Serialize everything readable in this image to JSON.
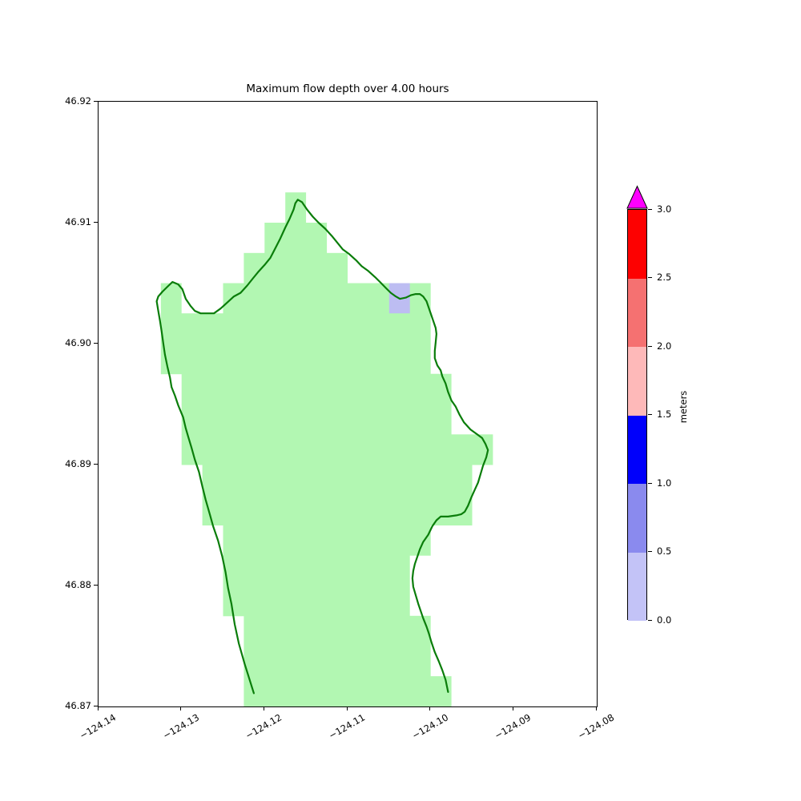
{
  "figure": {
    "title": "Maximum flow depth over 4.00 hours",
    "background_color": "#ffffff"
  },
  "chart_data": {
    "type": "heatmap",
    "title": "Maximum flow depth over 4.00 hours",
    "xlabel": "",
    "ylabel": "",
    "xlim": [
      -124.14,
      -124.08
    ],
    "ylim": [
      46.87,
      46.92
    ],
    "grid": false,
    "xticks": [
      -124.14,
      -124.13,
      -124.12,
      -124.11,
      -124.1,
      -124.09,
      -124.08
    ],
    "xtick_labels": [
      "−124.14",
      "−124.13",
      "−124.12",
      "−124.11",
      "−124.10",
      "−124.09",
      "−124.08"
    ],
    "yticks": [
      46.92,
      46.91,
      46.9,
      46.89,
      46.88,
      46.87
    ],
    "ytick_labels": [
      "46.92",
      "46.91",
      "46.90",
      "46.89",
      "46.88",
      "46.87"
    ],
    "domain_fill_color": "#b2f7b2",
    "coastline_color": "#0a7d0a",
    "domain_rows": [
      {
        "lat": [
          46.9125,
          46.91
        ],
        "lon_segments": [
          [
            -124.1175,
            -124.115
          ]
        ]
      },
      {
        "lat": [
          46.91,
          46.9075
        ],
        "lon_segments": [
          [
            -124.12,
            -124.1125
          ]
        ]
      },
      {
        "lat": [
          46.9075,
          46.905
        ],
        "lon_segments": [
          [
            -124.1225,
            -124.11
          ]
        ]
      },
      {
        "lat": [
          46.905,
          46.9025
        ],
        "lon_segments": [
          [
            -124.1325,
            -124.13
          ],
          [
            -124.125,
            -124.1
          ]
        ]
      },
      {
        "lat": [
          46.9025,
          46.9
        ],
        "lon_segments": [
          [
            -124.1325,
            -124.1
          ]
        ]
      },
      {
        "lat": [
          46.9,
          46.8975
        ],
        "lon_segments": [
          [
            -124.1325,
            -124.1
          ]
        ]
      },
      {
        "lat": [
          46.8975,
          46.895
        ],
        "lon_segments": [
          [
            -124.13,
            -124.0975
          ]
        ]
      },
      {
        "lat": [
          46.895,
          46.8925
        ],
        "lon_segments": [
          [
            -124.13,
            -124.0975
          ]
        ]
      },
      {
        "lat": [
          46.8925,
          46.89
        ],
        "lon_segments": [
          [
            -124.13,
            -124.0925
          ]
        ]
      },
      {
        "lat": [
          46.89,
          46.8875
        ],
        "lon_segments": [
          [
            -124.1275,
            -124.095
          ]
        ]
      },
      {
        "lat": [
          46.8875,
          46.885
        ],
        "lon_segments": [
          [
            -124.1275,
            -124.095
          ]
        ]
      },
      {
        "lat": [
          46.885,
          46.8825
        ],
        "lon_segments": [
          [
            -124.125,
            -124.1
          ]
        ]
      },
      {
        "lat": [
          46.8825,
          46.88
        ],
        "lon_segments": [
          [
            -124.125,
            -124.1025
          ]
        ]
      },
      {
        "lat": [
          46.88,
          46.8775
        ],
        "lon_segments": [
          [
            -124.125,
            -124.1025
          ]
        ]
      },
      {
        "lat": [
          46.8775,
          46.875
        ],
        "lon_segments": [
          [
            -124.1225,
            -124.1
          ]
        ]
      },
      {
        "lat": [
          46.875,
          46.8725
        ],
        "lon_segments": [
          [
            -124.1225,
            -124.1
          ]
        ]
      },
      {
        "lat": [
          46.8725,
          46.87
        ],
        "lon_segments": [
          [
            -124.1225,
            -124.0975
          ]
        ]
      }
    ],
    "flooded_cells": [
      {
        "lon": [
          -124.105,
          -124.1025
        ],
        "lat": [
          46.9025,
          46.905
        ],
        "depth_bin_m": [
          0.0,
          0.5
        ],
        "color": "#bdbdf2"
      }
    ],
    "coastline": [
      [
        -124.1213,
        46.8711
      ],
      [
        -124.1218,
        46.8722
      ],
      [
        -124.1224,
        46.8735
      ],
      [
        -124.1231,
        46.8752
      ],
      [
        -124.1236,
        46.8768
      ],
      [
        -124.124,
        46.8785
      ],
      [
        -124.1244,
        46.8798
      ],
      [
        -124.1247,
        46.8811
      ],
      [
        -124.1251,
        46.8824
      ],
      [
        -124.1256,
        46.8837
      ],
      [
        -124.1262,
        46.8849
      ],
      [
        -124.1266,
        46.8859
      ],
      [
        -124.1271,
        46.8871
      ],
      [
        -124.1275,
        46.8882
      ],
      [
        -124.1279,
        46.8894
      ],
      [
        -124.1284,
        46.8904
      ],
      [
        -124.1288,
        46.8914
      ],
      [
        -124.1292,
        46.8923
      ],
      [
        -124.1295,
        46.893
      ],
      [
        -124.1298,
        46.8939
      ],
      [
        -124.1304,
        46.8949
      ],
      [
        -124.1308,
        46.8957
      ],
      [
        -124.1312,
        46.8964
      ],
      [
        -124.1314,
        46.8972
      ],
      [
        -124.1317,
        46.8981
      ],
      [
        -124.132,
        46.8991
      ],
      [
        -124.1322,
        46.9
      ],
      [
        -124.1324,
        46.901
      ],
      [
        -124.1326,
        46.9019
      ],
      [
        -124.1328,
        46.9027
      ],
      [
        -124.133,
        46.9035
      ],
      [
        -124.1328,
        46.9039
      ],
      [
        -124.1323,
        46.9043
      ],
      [
        -124.1317,
        46.9047
      ],
      [
        -124.1311,
        46.9051
      ],
      [
        -124.1304,
        46.9049
      ],
      [
        -124.1299,
        46.9045
      ],
      [
        -124.1295,
        46.9037
      ],
      [
        -124.1289,
        46.9031
      ],
      [
        -124.1284,
        46.9027
      ],
      [
        -124.1277,
        46.9025
      ],
      [
        -124.1269,
        46.9025
      ],
      [
        -124.1261,
        46.9025
      ],
      [
        -124.1253,
        46.9029
      ],
      [
        -124.1245,
        46.9034
      ],
      [
        -124.1237,
        46.9039
      ],
      [
        -124.1229,
        46.9042
      ],
      [
        -124.1221,
        46.9048
      ],
      [
        -124.1214,
        46.9054
      ],
      [
        -124.1208,
        46.9059
      ],
      [
        -124.12,
        46.9065
      ],
      [
        -124.1193,
        46.9071
      ],
      [
        -124.1187,
        46.9079
      ],
      [
        -124.1181,
        46.9087
      ],
      [
        -124.1175,
        46.9096
      ],
      [
        -124.117,
        46.9103
      ],
      [
        -124.1165,
        46.9111
      ],
      [
        -124.1163,
        46.9116
      ],
      [
        -124.116,
        46.9119
      ],
      [
        -124.1155,
        46.9117
      ],
      [
        -124.1149,
        46.9111
      ],
      [
        -124.1142,
        46.9105
      ],
      [
        -124.1135,
        46.91
      ],
      [
        -124.1127,
        46.9095
      ],
      [
        -124.1119,
        46.9089
      ],
      [
        -124.1113,
        46.9084
      ],
      [
        -124.1106,
        46.9078
      ],
      [
        -124.1098,
        46.9074
      ],
      [
        -124.109,
        46.9069
      ],
      [
        -124.1083,
        46.9064
      ],
      [
        -124.1075,
        46.906
      ],
      [
        -124.1067,
        46.9055
      ],
      [
        -124.1061,
        46.9051
      ],
      [
        -124.1054,
        46.9046
      ],
      [
        -124.1048,
        46.9042
      ],
      [
        -124.1042,
        46.9039
      ],
      [
        -124.1037,
        46.9037
      ],
      [
        -124.103,
        46.9038
      ],
      [
        -124.1024,
        46.904
      ],
      [
        -124.1018,
        46.9041
      ],
      [
        -124.1013,
        46.9041
      ],
      [
        -124.1009,
        46.9039
      ],
      [
        -124.1005,
        46.9035
      ],
      [
        -124.1002,
        46.9029
      ],
      [
        -124.1,
        46.9025
      ],
      [
        -124.0997,
        46.9019
      ],
      [
        -124.0994,
        46.9013
      ],
      [
        -124.0993,
        46.9008
      ],
      [
        -124.0994,
        46.9001
      ],
      [
        -124.0995,
        46.8994
      ],
      [
        -124.0995,
        46.8988
      ],
      [
        -124.0992,
        46.8982
      ],
      [
        -124.0988,
        46.8978
      ],
      [
        -124.0986,
        46.8973
      ],
      [
        -124.0982,
        46.8967
      ],
      [
        -124.0979,
        46.896
      ],
      [
        -124.0975,
        46.8953
      ],
      [
        -124.097,
        46.8948
      ],
      [
        -124.0965,
        46.8941
      ],
      [
        -124.096,
        46.8935
      ],
      [
        -124.0952,
        46.8929
      ],
      [
        -124.0944,
        46.8925
      ],
      [
        -124.0938,
        46.8922
      ],
      [
        -124.0934,
        46.8917
      ],
      [
        -124.0931,
        46.8912
      ],
      [
        -124.0933,
        46.8906
      ],
      [
        -124.0937,
        46.8899
      ],
      [
        -124.094,
        46.8892
      ],
      [
        -124.0943,
        46.8885
      ],
      [
        -124.0947,
        46.8879
      ],
      [
        -124.0951,
        46.8873
      ],
      [
        -124.0955,
        46.8866
      ],
      [
        -124.0959,
        46.8861
      ],
      [
        -124.0963,
        46.8859
      ],
      [
        -124.0969,
        46.8858
      ],
      [
        -124.0979,
        46.8857
      ],
      [
        -124.0988,
        46.8857
      ],
      [
        -124.0993,
        46.8854
      ],
      [
        -124.0998,
        46.8849
      ],
      [
        -124.1003,
        46.8842
      ],
      [
        -124.1009,
        46.8836
      ],
      [
        -124.1013,
        46.883
      ],
      [
        -124.1016,
        46.8824
      ],
      [
        -124.1019,
        46.8818
      ],
      [
        -124.1021,
        46.8812
      ],
      [
        -124.1022,
        46.8806
      ],
      [
        -124.1021,
        46.8799
      ],
      [
        -124.1018,
        46.8792
      ],
      [
        -124.1015,
        46.8785
      ],
      [
        -124.1012,
        46.8779
      ],
      [
        -124.1009,
        46.8773
      ],
      [
        -124.1005,
        46.8766
      ],
      [
        -124.1002,
        46.876
      ],
      [
        -124.0999,
        46.8753
      ],
      [
        -124.0995,
        46.8745
      ],
      [
        -124.099,
        46.8737
      ],
      [
        -124.0986,
        46.873
      ],
      [
        -124.0982,
        46.8722
      ],
      [
        -124.0979,
        46.8712
      ]
    ],
    "colorbar": {
      "label": "meters",
      "tick_values": [
        0.0,
        0.5,
        1.0,
        1.5,
        2.0,
        2.5,
        3.0
      ],
      "tick_labels": [
        "0.0",
        "0.5",
        "1.0",
        "1.5",
        "2.0",
        "2.5",
        "3.0"
      ],
      "segments": [
        {
          "range": [
            0.0,
            0.5
          ],
          "color": "#c3c3f7"
        },
        {
          "range": [
            0.5,
            1.0
          ],
          "color": "#8a8aee"
        },
        {
          "range": [
            1.0,
            1.5
          ],
          "color": "#0000fb"
        },
        {
          "range": [
            1.5,
            2.0
          ],
          "color": "#feb9b9"
        },
        {
          "range": [
            2.0,
            2.5
          ],
          "color": "#f57171"
        },
        {
          "range": [
            2.5,
            3.0
          ],
          "color": "#fd0101"
        }
      ],
      "extend": "max",
      "over_color": "#fe00fe",
      "range": [
        0.0,
        3.0
      ]
    }
  }
}
